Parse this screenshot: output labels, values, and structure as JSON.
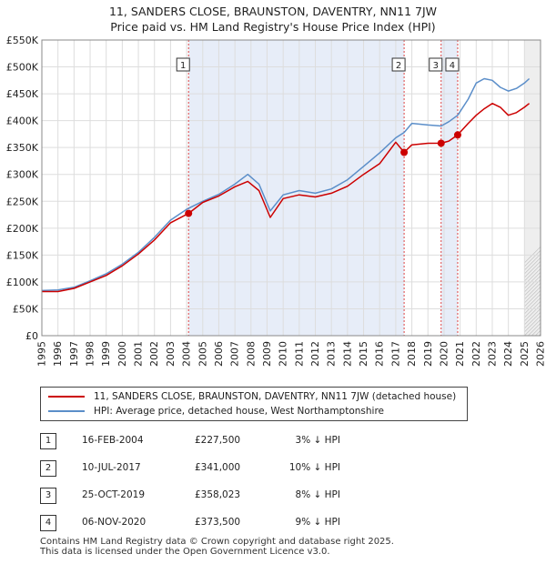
{
  "chart_data": {
    "type": "line",
    "title": "11, SANDERS CLOSE, BRAUNSTON, DAVENTRY, NN11 7JW",
    "subtitle": "Price paid vs. HM Land Registry's House Price Index (HPI)",
    "xlabel": "",
    "ylabel": "",
    "xlim": [
      1995,
      2026
    ],
    "ylim": [
      0,
      550000
    ],
    "y_ticks": [
      0,
      50000,
      100000,
      150000,
      200000,
      250000,
      300000,
      350000,
      400000,
      450000,
      500000,
      550000
    ],
    "y_tick_labels": [
      "£0",
      "£50K",
      "£100K",
      "£150K",
      "£200K",
      "£250K",
      "£300K",
      "£350K",
      "£400K",
      "£450K",
      "£500K",
      "£550K"
    ],
    "x_ticks": [
      1995,
      1996,
      1997,
      1998,
      1999,
      2000,
      2001,
      2002,
      2003,
      2004,
      2005,
      2006,
      2007,
      2008,
      2009,
      2010,
      2011,
      2012,
      2013,
      2014,
      2015,
      2016,
      2017,
      2018,
      2019,
      2020,
      2021,
      2022,
      2023,
      2024,
      2025,
      2026
    ],
    "x_tick_labels": [
      "1995",
      "1996",
      "1997",
      "1998",
      "1999",
      "2000",
      "2001",
      "2002",
      "2003",
      "2004",
      "2005",
      "2006",
      "2007",
      "2008",
      "2009",
      "2010",
      "2011",
      "2012",
      "2013",
      "2014",
      "2015",
      "2016",
      "2017",
      "2018",
      "2019",
      "2020",
      "2021",
      "2022",
      "2023",
      "2024",
      "2025",
      "2026"
    ],
    "grid": true,
    "legend_position": "below",
    "forecast_start": 2025.0,
    "shaded_spans": [
      [
        2004.12,
        2017.52
      ],
      [
        2019.82,
        2020.85
      ]
    ],
    "series": [
      {
        "name": "11, SANDERS CLOSE, BRAUNSTON, DAVENTRY, NN11 7JW (detached house)",
        "color": "#cc0000",
        "x": [
          1995.0,
          1996.0,
          1997.0,
          1998.0,
          1999.0,
          2000.0,
          2001.0,
          2002.0,
          2003.0,
          2004.12,
          2005.0,
          2006.0,
          2007.0,
          2007.8,
          2008.5,
          2009.2,
          2010.0,
          2011.0,
          2012.0,
          2013.0,
          2014.0,
          2015.0,
          2016.0,
          2017.0,
          2017.52,
          2018.0,
          2019.0,
          2019.82,
          2020.3,
          2020.85,
          2021.5,
          2022.0,
          2022.5,
          2023.0,
          2023.5,
          2024.0,
          2024.5,
          2025.0,
          2025.3
        ],
        "values": [
          82000,
          82000,
          88000,
          100000,
          112000,
          130000,
          152000,
          178000,
          210000,
          227500,
          248000,
          260000,
          277000,
          287000,
          270000,
          220000,
          255000,
          262000,
          258000,
          265000,
          278000,
          300000,
          320000,
          360000,
          341000,
          355000,
          358000,
          358023,
          362000,
          373500,
          395000,
          410000,
          422000,
          432000,
          425000,
          410000,
          415000,
          425000,
          432000
        ]
      },
      {
        "name": "HPI: Average price, detached house, West Northamptonshire",
        "color": "#5b8ec9",
        "x": [
          1995.0,
          1996.0,
          1997.0,
          1998.0,
          1999.0,
          2000.0,
          2001.0,
          2002.0,
          2003.0,
          2004.0,
          2005.0,
          2006.0,
          2007.0,
          2007.8,
          2008.5,
          2009.2,
          2010.0,
          2011.0,
          2012.0,
          2013.0,
          2014.0,
          2015.0,
          2016.0,
          2017.0,
          2017.52,
          2018.0,
          2019.0,
          2019.82,
          2020.3,
          2020.85,
          2021.5,
          2022.0,
          2022.5,
          2023.0,
          2023.5,
          2024.0,
          2024.5,
          2025.0,
          2025.3
        ],
        "values": [
          84000,
          85000,
          90000,
          102000,
          115000,
          133000,
          155000,
          183000,
          215000,
          235000,
          250000,
          263000,
          282000,
          300000,
          282000,
          232000,
          262000,
          270000,
          265000,
          273000,
          290000,
          315000,
          340000,
          368000,
          378000,
          395000,
          392000,
          390000,
          398000,
          410000,
          440000,
          470000,
          478000,
          475000,
          462000,
          455000,
          460000,
          470000,
          478000
        ]
      }
    ],
    "markers": [
      {
        "label": "1",
        "x": 2004.12,
        "y": 227500
      },
      {
        "label": "2",
        "x": 2017.52,
        "y": 341000
      },
      {
        "label": "3",
        "x": 2019.82,
        "y": 358023
      },
      {
        "label": "4",
        "x": 2020.85,
        "y": 373500
      }
    ]
  },
  "legend": {
    "property_label": "11, SANDERS CLOSE, BRAUNSTON, DAVENTRY, NN11 7JW (detached house)",
    "hpi_label": "HPI: Average price, detached house, West Northamptonshire",
    "property_color": "#cc0000",
    "hpi_color": "#5b8ec9"
  },
  "sales": [
    {
      "num": "1",
      "date": "16-FEB-2004",
      "price": "£227,500",
      "hpi": "3% ↓ HPI"
    },
    {
      "num": "2",
      "date": "10-JUL-2017",
      "price": "£341,000",
      "hpi": "10% ↓ HPI"
    },
    {
      "num": "3",
      "date": "25-OCT-2019",
      "price": "£358,023",
      "hpi": "8% ↓ HPI"
    },
    {
      "num": "4",
      "date": "06-NOV-2020",
      "price": "£373,500",
      "hpi": "9% ↓ HPI"
    }
  ],
  "footer": {
    "line1": "Contains HM Land Registry data © Crown copyright and database right 2025.",
    "line2": "This data is licensed under the Open Government Licence v3.0."
  }
}
